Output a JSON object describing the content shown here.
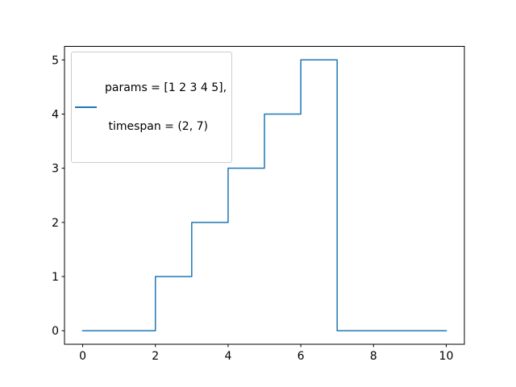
{
  "chart_data": {
    "type": "line",
    "drawstyle": "steps-post",
    "x": [
      0,
      2,
      3,
      4,
      5,
      6,
      7,
      10
    ],
    "y": [
      0,
      1,
      2,
      3,
      4,
      5,
      0,
      0
    ],
    "line_color": "#1f77b4",
    "line_width": 1.5,
    "title": "",
    "xlabel": "",
    "ylabel": "",
    "xlim": [
      -0.5,
      10.5
    ],
    "ylim": [
      -0.25,
      5.25
    ],
    "xticks": [
      0,
      2,
      4,
      6,
      8,
      10
    ],
    "yticks": [
      0,
      1,
      2,
      3,
      4,
      5
    ],
    "grid": false,
    "axis_color": "#000000",
    "background": "#ffffff",
    "legend": {
      "position": "upper left",
      "lines": [
        "params = [1 2 3 4 5],",
        " timespan = (2, 7)"
      ]
    }
  }
}
